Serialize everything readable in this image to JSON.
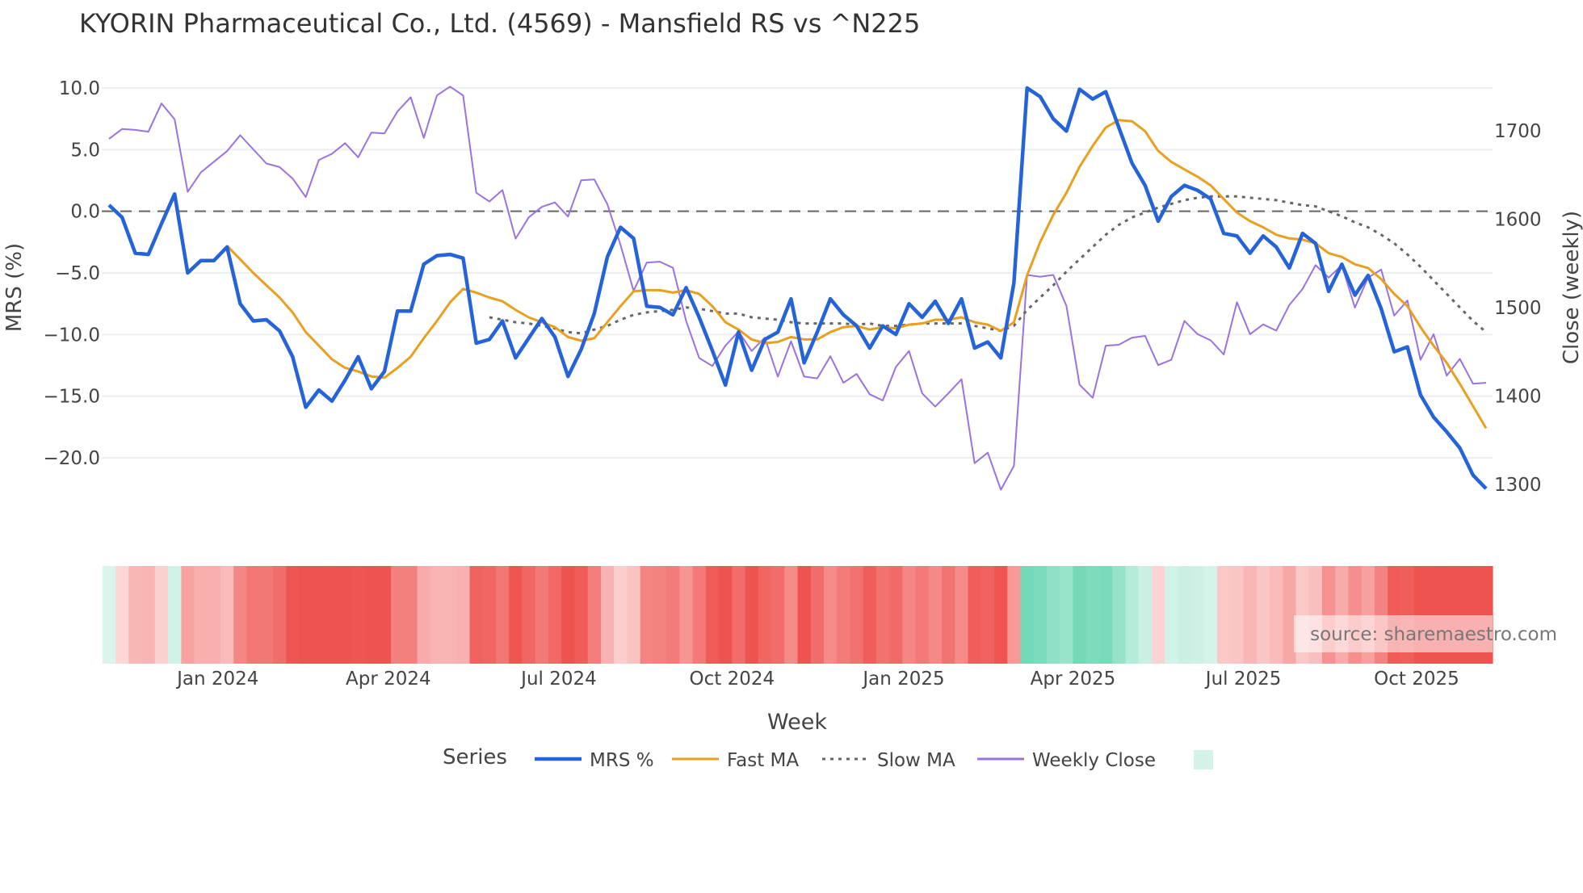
{
  "chart_data": {
    "type": "line",
    "title": "KYORIN Pharmaceutical Co., Ltd. (4569) - Mansfield RS vs ^N225",
    "xlabel": "Week",
    "ylabel": "MRS (%)",
    "y2label": "Close (weekly)",
    "ylim": [
      -22.8,
      10.3
    ],
    "y2lim": [
      1290,
      1737
    ],
    "yticks": [
      10,
      5,
      0,
      -5,
      -10,
      -15,
      -20
    ],
    "ytick_labels": [
      "10.0",
      "5.0",
      "0.0",
      "−5.0",
      "−10.0",
      "−15.0",
      "−20.0"
    ],
    "y2ticks": [
      1700,
      1600,
      1500,
      1400,
      1300
    ],
    "y2tick_labels": [
      "1700",
      "1600",
      "1500",
      "1400",
      "1300"
    ],
    "xticks": [
      {
        "label": "Jan 2024",
        "week_index": 8.3
      },
      {
        "label": "Apr 2024",
        "week_index": 21.3
      },
      {
        "label": "Jul 2024",
        "week_index": 34.3
      },
      {
        "label": "Oct 2024",
        "week_index": 47.5
      },
      {
        "label": "Jan 2025",
        "week_index": 60.6
      },
      {
        "label": "Apr 2025",
        "week_index": 73.5
      },
      {
        "label": "Jul 2025",
        "week_index": 86.5
      },
      {
        "label": "Oct 2025",
        "week_index": 99.7
      }
    ],
    "reference_line": 0,
    "grid": true,
    "legend": {
      "title": "Series",
      "placement": "bottom"
    },
    "series": [
      {
        "name": "MRS %",
        "color": "#2563d9",
        "style": "solid",
        "axis": "left",
        "values": [
          0.5,
          -0.5,
          -3.4,
          -3.5,
          -1,
          1.4,
          -5,
          -4,
          -4,
          -2.9,
          -7.5,
          -8.9,
          -8.8,
          -9.7,
          -11.8,
          -15.9,
          -14.5,
          -15.4,
          -13.7,
          -11.8,
          -14.4,
          -13,
          -8.1,
          -8.1,
          -4.3,
          -3.6,
          -3.5,
          -3.8,
          -10.7,
          -10.4,
          -8.9,
          -11.9,
          -10.3,
          -8.7,
          -10.2,
          -13.4,
          -11.2,
          -8.3,
          -3.7,
          -1.3,
          -2.2,
          -7.7,
          -7.8,
          -8.4,
          -6.2,
          -8.6,
          -11.3,
          -14.1,
          -9.8,
          -12.9,
          -10.4,
          -9.8,
          -7.1,
          -12.3,
          -9.8,
          -7.1,
          -8.4,
          -9.3,
          -11.1,
          -9.3,
          -10,
          -7.5,
          -8.6,
          -7.3,
          -9.1,
          -7.1,
          -11.1,
          -10.6,
          -11.9,
          -5.8,
          10,
          9.3,
          7.5,
          6.5,
          9.9,
          9.1,
          9.7,
          6.8,
          3.9,
          2.1,
          -0.8,
          1.2,
          2.1,
          1.7,
          1,
          -1.8,
          -2,
          -3.4,
          -2,
          -2.9,
          -4.6,
          -1.8,
          -2.6,
          -6.5,
          -4.3,
          -6.8,
          -5.2,
          -7.9,
          -11.4,
          -11,
          -14.9,
          -16.7,
          -17.9,
          -19.2,
          -21.4,
          -22.5
        ]
      },
      {
        "name": "Fast MA",
        "color": "#e8a020",
        "style": "solid",
        "axis": "left",
        "values": [
          null,
          null,
          null,
          null,
          null,
          null,
          null,
          null,
          null,
          -2.8,
          -3.9,
          -5,
          -6,
          -7,
          -8.2,
          -9.8,
          -10.9,
          -12,
          -12.7,
          -13,
          -13.4,
          -13.5,
          -12.7,
          -11.8,
          -10.3,
          -8.9,
          -7.4,
          -6.3,
          -6.6,
          -7,
          -7.3,
          -8,
          -8.6,
          -9,
          -9.4,
          -10.2,
          -10.5,
          -10.3,
          -9,
          -7.7,
          -6.5,
          -6.4,
          -6.4,
          -6.6,
          -6.4,
          -6.7,
          -7.7,
          -9,
          -9.6,
          -10.4,
          -10.7,
          -10.6,
          -10.2,
          -10.4,
          -10.4,
          -9.8,
          -9.4,
          -9.3,
          -9.6,
          -9.4,
          -9.5,
          -9.2,
          -9.1,
          -8.8,
          -8.8,
          -8.6,
          -9,
          -9.2,
          -9.7,
          -9,
          -5.2,
          -2.5,
          -0.3,
          1.5,
          3.6,
          5.3,
          6.8,
          7.4,
          7.3,
          6.5,
          4.9,
          4,
          3.4,
          2.8,
          2.1,
          1,
          -0.1,
          -0.8,
          -1.3,
          -1.9,
          -2.2,
          -2.3,
          -2.6,
          -3.4,
          -3.7,
          -4.3,
          -4.6,
          -5.5,
          -6.7,
          -7.7,
          -9.4,
          -10.9,
          -12.3,
          -14,
          -15.8,
          -17.6
        ]
      },
      {
        "name": "Slow MA",
        "color": "#666666",
        "style": "dotted",
        "axis": "left",
        "values": [
          null,
          null,
          null,
          null,
          null,
          null,
          null,
          null,
          null,
          null,
          null,
          null,
          null,
          null,
          null,
          null,
          null,
          null,
          null,
          null,
          null,
          null,
          null,
          null,
          null,
          null,
          null,
          null,
          null,
          -8.6,
          -8.8,
          -9,
          -9.1,
          -9.3,
          -9.5,
          -9.8,
          -9.9,
          -9.6,
          -9.3,
          -8.8,
          -8.4,
          -8.2,
          -8.1,
          -8,
          -7.8,
          -7.9,
          -8.1,
          -8.3,
          -8.3,
          -8.6,
          -8.7,
          -8.8,
          -9,
          -9.1,
          -9.1,
          -9.1,
          -9.1,
          -9.2,
          -9.1,
          -9.3,
          -9.3,
          -9.2,
          -9.1,
          -9.1,
          -9.1,
          -9.1,
          -9.3,
          -9.5,
          -9.7,
          -9.3,
          -8,
          -7,
          -6,
          -4.9,
          -3.9,
          -2.9,
          -1.9,
          -1.1,
          -0.5,
          -0.1,
          0.3,
          0.6,
          0.9,
          1.1,
          1.2,
          1.2,
          1.2,
          1.1,
          1,
          0.9,
          0.7,
          0.5,
          0.4,
          0,
          -0.4,
          -0.9,
          -1.3,
          -1.9,
          -2.6,
          -3.5,
          -4.5,
          -5.6,
          -6.7,
          -7.8,
          -8.9,
          -9.8
        ]
      },
      {
        "name": "Weekly Close",
        "color": "#9b72e0",
        "style": "solid",
        "axis": "right",
        "values": [
          1691,
          1702,
          1701,
          1699,
          1731,
          1713,
          1631,
          1653,
          1665,
          1677,
          1695,
          1679,
          1663,
          1659,
          1646,
          1625,
          1667,
          1674,
          1686,
          1670,
          1698,
          1697,
          1722,
          1738,
          1692,
          1740,
          1750,
          1740,
          1630,
          1620,
          1633,
          1578,
          1602,
          1614,
          1619,
          1603,
          1644,
          1645,
          1617,
          1571,
          1519,
          1551,
          1552,
          1545,
          1485,
          1443,
          1434,
          1457,
          1473,
          1451,
          1466,
          1422,
          1462,
          1422,
          1420,
          1445,
          1415,
          1425,
          1402,
          1395,
          1433,
          1451,
          1403,
          1388,
          1403,
          1419,
          1324,
          1336,
          1294,
          1321,
          1537,
          1535,
          1537,
          1502,
          1413,
          1398,
          1457,
          1458,
          1466,
          1468,
          1435,
          1441,
          1485,
          1470,
          1463,
          1447,
          1506,
          1470,
          1481,
          1474,
          1503,
          1521,
          1548,
          1534,
          1548,
          1500,
          1534,
          1543,
          1491,
          1508,
          1441,
          1470,
          1423,
          1442,
          1414,
          1415
        ]
      }
    ],
    "heatmap_strip": {
      "based_on": "MRS %",
      "positive_color": "#5fd3ad",
      "negative_color": "#ef5350"
    },
    "legend_extra_swatch_color": "#d4f2e8",
    "watermark": "source: sharemaestro.com"
  }
}
